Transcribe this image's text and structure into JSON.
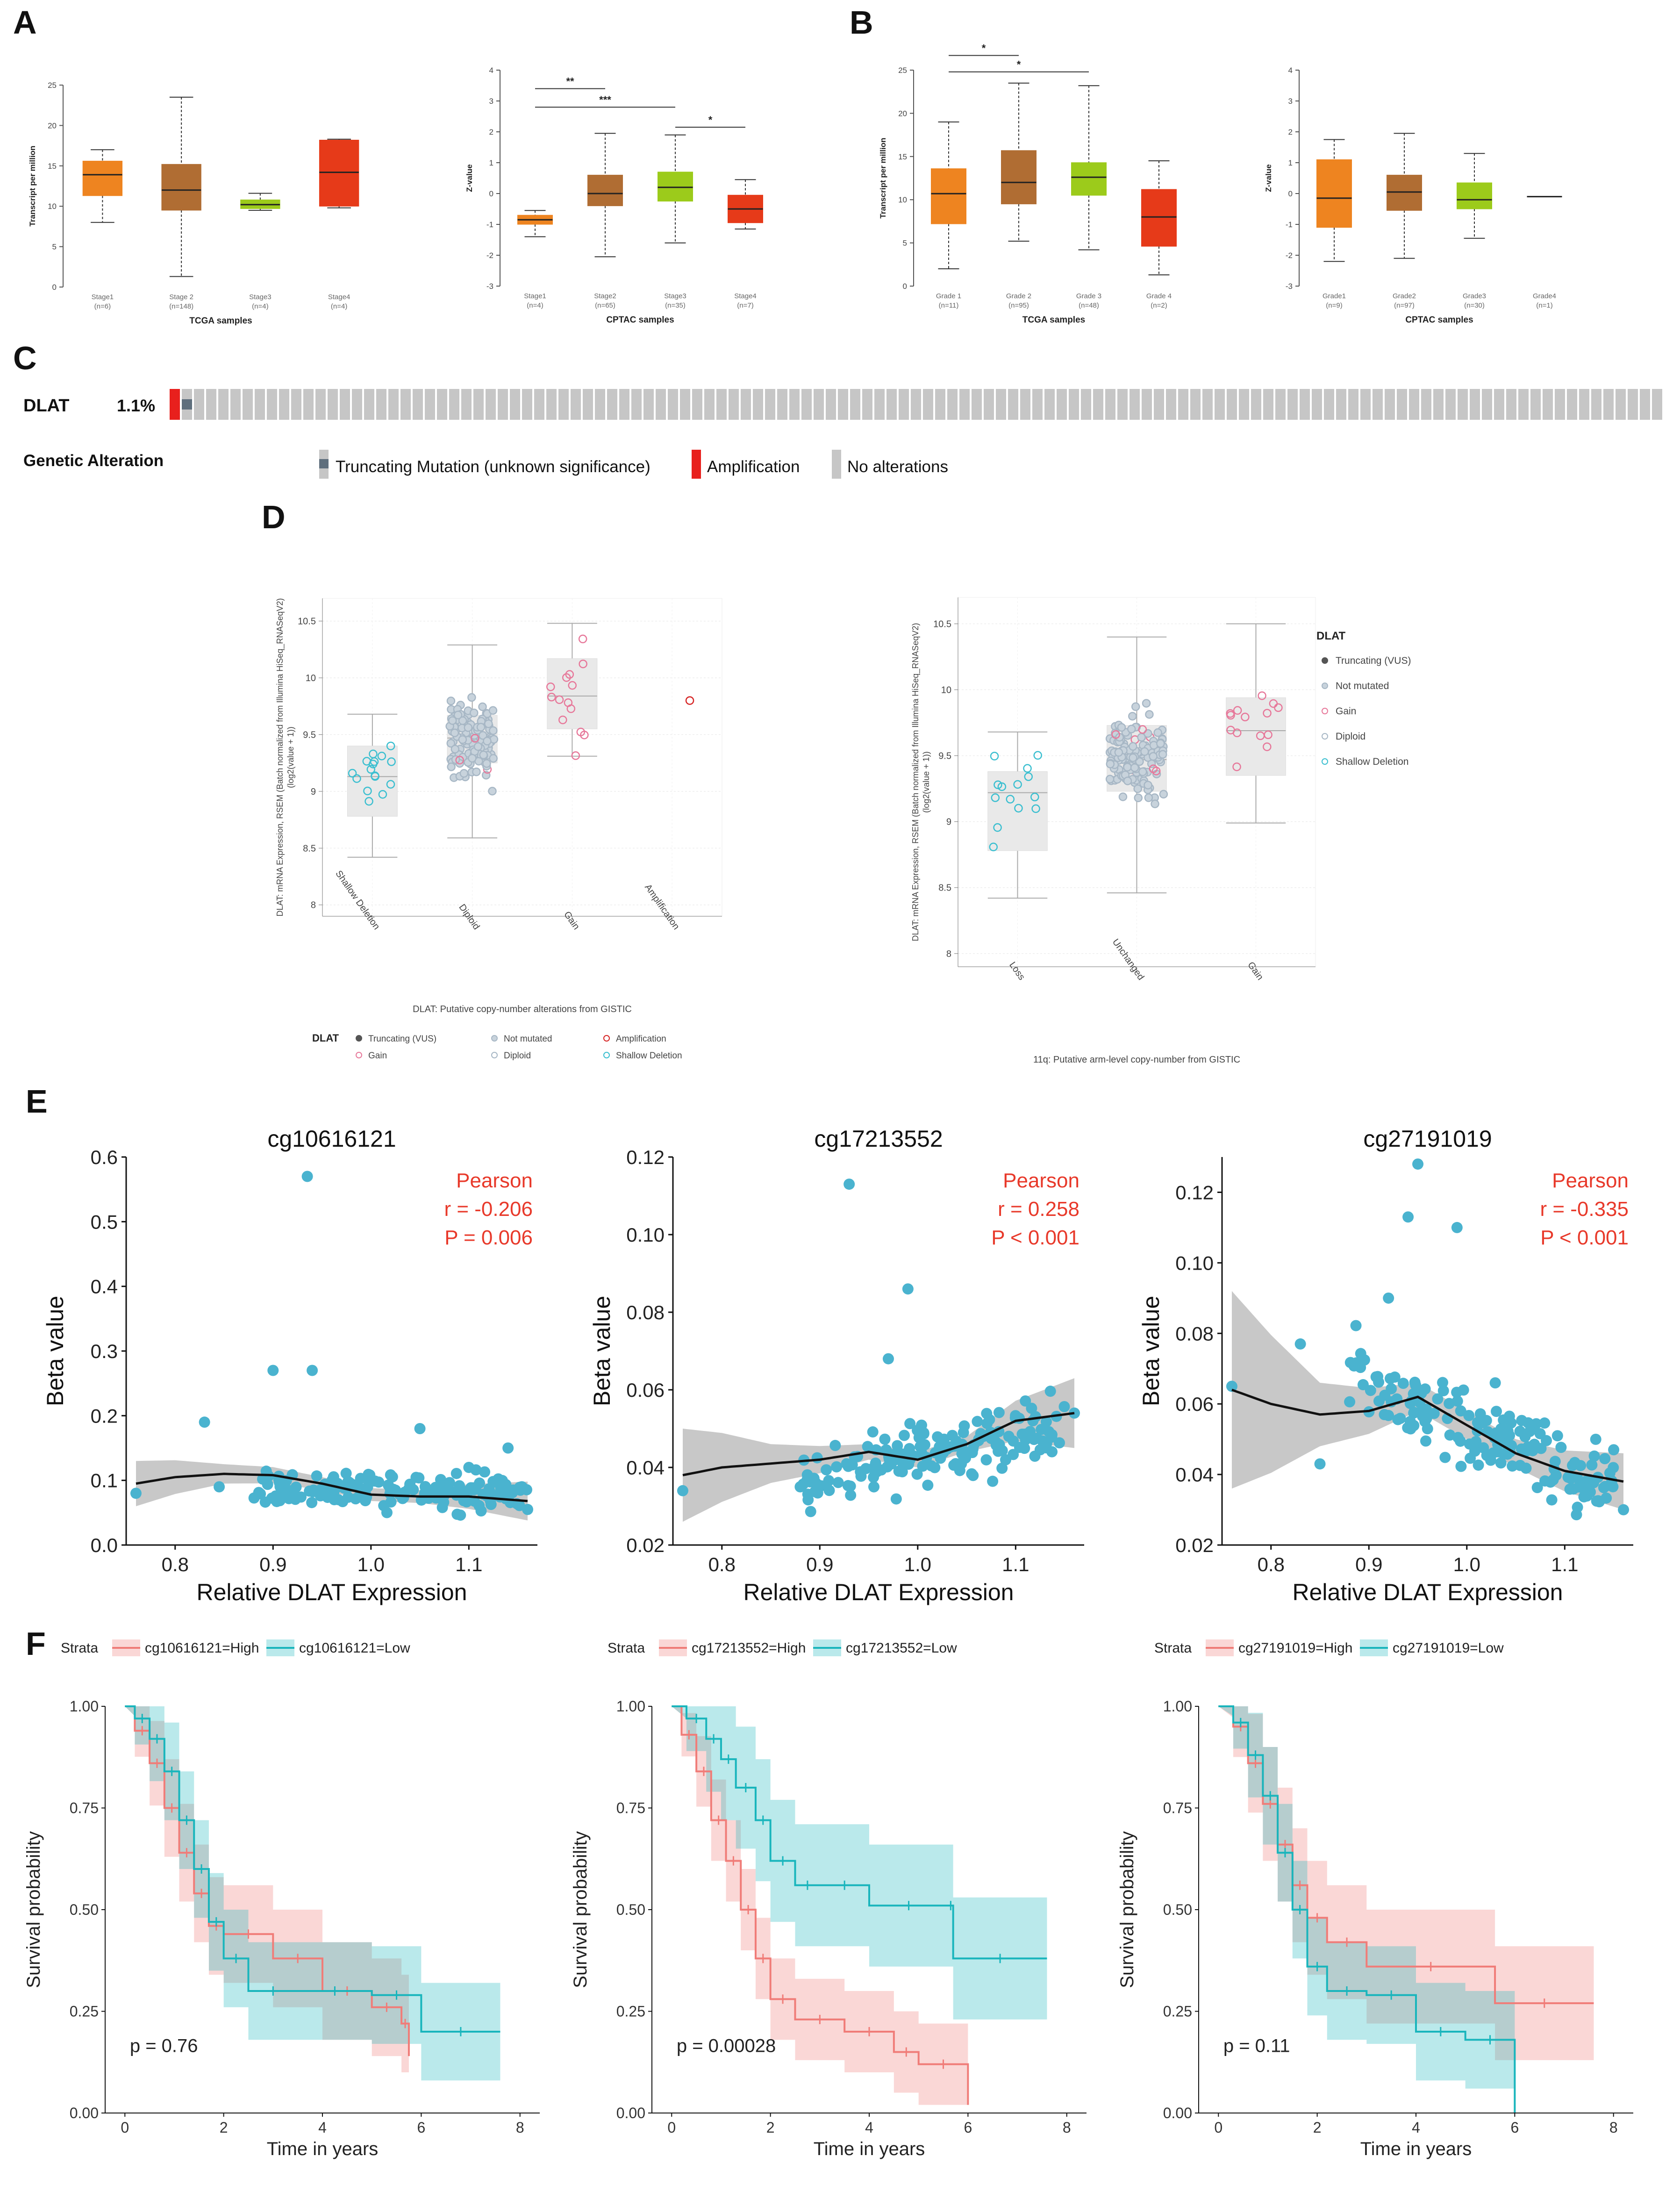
{
  "colors": {
    "orange": "#ee8420",
    "brown": "#b06d33",
    "lime": "#9ccb1b",
    "red": "#e63a19",
    "teal": "#4ab3cf",
    "pearson_red": "#e8392a",
    "km_high": "#f07c78",
    "km_low": "#19b5bc",
    "gray_cell": "#c6c6c6"
  },
  "panel_labels": {
    "a": "A",
    "b": "B",
    "c": "C",
    "d": "D",
    "e": "E",
    "f": "F"
  },
  "panel_a": [
    {
      "title": "",
      "ylabel": "Transcript per million",
      "xlabel": "TCGA samples",
      "ylim": [
        0,
        25
      ],
      "yticks": [
        "0",
        "5",
        "10",
        "15",
        "20",
        "25"
      ],
      "categories": [
        "Stage1",
        "Stage 2",
        "Stage3",
        "Stage4"
      ],
      "counts": [
        "(n=6)",
        "(n=148)",
        "(n=4)",
        "(n=4)"
      ],
      "boxes": [
        {
          "min": 8,
          "q1": 11.3,
          "median": 13.9,
          "q3": 15.6,
          "max": 17,
          "color": "orange"
        },
        {
          "min": 1.3,
          "q1": 9.5,
          "median": 12,
          "q3": 15.2,
          "max": 23.5,
          "color": "brown"
        },
        {
          "min": 9.5,
          "q1": 9.7,
          "median": 10.2,
          "q3": 10.8,
          "max": 11.6,
          "color": "lime"
        },
        {
          "min": 9.8,
          "q1": 10,
          "median": 14.2,
          "q3": 18.2,
          "max": 18.3,
          "color": "red"
        }
      ],
      "brackets": []
    },
    {
      "title": "",
      "ylabel": "Z-value",
      "xlabel": "CPTAC samples",
      "ylim": [
        -3,
        4
      ],
      "yticks": [
        "-3",
        "-2",
        "-1",
        "0",
        "1",
        "2",
        "3",
        "4"
      ],
      "categories": [
        "Stage1",
        "Stage2",
        "Stage3",
        "Stage4"
      ],
      "counts": [
        "(n=4)",
        "(n=65)",
        "(n=35)",
        "(n=7)"
      ],
      "boxes": [
        {
          "min": -1.4,
          "q1": -1,
          "median": -0.85,
          "q3": -0.7,
          "max": -0.55,
          "color": "orange"
        },
        {
          "min": -2.05,
          "q1": -0.4,
          "median": 0,
          "q3": 0.6,
          "max": 1.95,
          "color": "brown"
        },
        {
          "min": -1.6,
          "q1": -0.25,
          "median": 0.2,
          "q3": 0.7,
          "max": 1.9,
          "color": "lime"
        },
        {
          "min": -1.15,
          "q1": -0.95,
          "median": -0.5,
          "q3": -0.05,
          "max": 0.45,
          "color": "red"
        }
      ],
      "brackets": [
        {
          "from": 0,
          "to": 1,
          "y": 3.4,
          "label": "**"
        },
        {
          "from": 0,
          "to": 2,
          "y": 2.8,
          "label": "***"
        },
        {
          "from": 2,
          "to": 3,
          "y": 2.15,
          "label": "*"
        }
      ]
    }
  ],
  "panel_b": [
    {
      "title": "",
      "ylabel": "Transcript per million",
      "xlabel": "TCGA samples",
      "ylim": [
        0,
        25
      ],
      "yticks": [
        "0",
        "5",
        "10",
        "15",
        "20",
        "25"
      ],
      "categories": [
        "Grade 1",
        "Grade 2",
        "Grade 3",
        "Grade 4"
      ],
      "counts": [
        "(n=11)",
        "(n=95)",
        "(n=48)",
        "(n=2)"
      ],
      "boxes": [
        {
          "min": 2,
          "q1": 7.2,
          "median": 10.7,
          "q3": 13.6,
          "max": 19,
          "color": "orange"
        },
        {
          "min": 5.2,
          "q1": 9.5,
          "median": 12,
          "q3": 15.7,
          "max": 23.5,
          "color": "brown"
        },
        {
          "min": 4.2,
          "q1": 10.5,
          "median": 12.6,
          "q3": 14.3,
          "max": 23.2,
          "color": "lime"
        },
        {
          "min": 1.3,
          "q1": 4.6,
          "median": 8,
          "q3": 11.2,
          "max": 14.5,
          "color": "red"
        }
      ],
      "brackets": [
        {
          "from": 0,
          "to": 1,
          "y": 26.7,
          "label": "*"
        },
        {
          "from": 0,
          "to": 2,
          "y": 24.8,
          "label": "*"
        }
      ]
    },
    {
      "title": "",
      "ylabel": "Z-value",
      "xlabel": "CPTAC samples",
      "ylim": [
        -3,
        4
      ],
      "yticks": [
        "-3",
        "-2",
        "-1",
        "0",
        "1",
        "2",
        "3",
        "4"
      ],
      "categories": [
        "Grade1",
        "Grade2",
        "Grade3",
        "Grade4"
      ],
      "counts": [
        "(n=9)",
        "(n=97)",
        "(n=30)",
        "(n=1)"
      ],
      "boxes": [
        {
          "min": -2.2,
          "q1": -1.1,
          "median": -0.15,
          "q3": 1.1,
          "max": 1.75,
          "color": "orange"
        },
        {
          "min": -2.1,
          "q1": -0.55,
          "median": 0.05,
          "q3": 0.6,
          "max": 1.95,
          "color": "brown"
        },
        {
          "min": -1.45,
          "q1": -0.5,
          "median": -0.2,
          "q3": 0.35,
          "max": 1.3,
          "color": "lime"
        },
        {
          "min": -0.1,
          "q1": -0.1,
          "median": -0.1,
          "q3": -0.1,
          "max": -0.1,
          "color": "red"
        }
      ],
      "brackets": []
    }
  ],
  "panel_c": {
    "gene": "DLAT",
    "pct": "1.1%",
    "legend_title": "Genetic Alteration",
    "legend": [
      "Truncating Mutation (unknown significance)",
      "Amplification",
      "No alterations"
    ]
  },
  "panel_d": {
    "left": {
      "ylabel": [
        "DLAT: mRNA Expression, RSEM (Batch normalized from Illumina HiSeq_RNASeqV2)",
        "(log2(value + 1))"
      ],
      "xlabel": "DLAT: Putative copy-number alterations from GISTIC",
      "categories": [
        "Shallow Deletion",
        "Diploid",
        "Gain",
        "Amplification"
      ],
      "ylim": [
        7.9,
        10.7
      ],
      "yticks": [
        8,
        8.5,
        9,
        9.5,
        10,
        10.5
      ],
      "ytick_labels": [
        "8",
        "8.5",
        "9",
        "9.5",
        "10",
        "10.5"
      ],
      "boxes": [
        {
          "min": 8.42,
          "q1": 8.78,
          "median": 9.13,
          "q3": 9.4,
          "max": 9.68
        },
        {
          "min": 8.59,
          "q1": 9.25,
          "median": 9.47,
          "q3": 9.67,
          "max": 10.29
        },
        {
          "min": 9.31,
          "q1": 9.55,
          "median": 9.84,
          "q3": 10.17,
          "max": 10.48
        },
        null
      ],
      "legend_title": "DLAT",
      "legend": [
        "Truncating (VUS)",
        "Not mutated",
        "Amplification",
        "Gain",
        "Diploid",
        "Shallow Deletion"
      ]
    },
    "right": {
      "ylabel": [
        "DLAT: mRNA Expression, RSEM (Batch normalized from Illumina HiSeq_RNASeqV2)",
        "(log2(value + 1))"
      ],
      "xlabel": "11q: Putative arm-level copy-number from GISTIC",
      "categories": [
        "Loss",
        "Unchanged",
        "Gain"
      ],
      "ylim": [
        7.9,
        10.7
      ],
      "yticks": [
        8,
        8.5,
        9,
        9.5,
        10,
        10.5
      ],
      "ytick_labels": [
        "8",
        "8.5",
        "9",
        "9.5",
        "10",
        "10.5"
      ],
      "boxes": [
        {
          "min": 8.42,
          "q1": 8.78,
          "median": 9.22,
          "q3": 9.38,
          "max": 9.68
        },
        {
          "min": 8.46,
          "q1": 9.23,
          "median": 9.47,
          "q3": 9.73,
          "max": 10.4
        },
        {
          "min": 8.99,
          "q1": 9.35,
          "median": 9.69,
          "q3": 9.94,
          "max": 10.5
        }
      ],
      "legend_title": "DLAT",
      "legend": [
        "Truncating (VUS)",
        "Not mutated",
        "Gain",
        "Diploid",
        "Shallow Deletion"
      ]
    }
  },
  "panel_e": [
    {
      "title": "cg10616121",
      "xlabel": "Relative DLAT Expression",
      "ylabel": "Beta value",
      "xlim": [
        0.75,
        1.17
      ],
      "ylim": [
        0,
        0.6
      ],
      "xticks": [
        0.8,
        0.9,
        1.0,
        1.1
      ],
      "xtick_labels": [
        "0.8",
        "0.9",
        "1.0",
        "1.1"
      ],
      "yticks": [
        0,
        0.1,
        0.2,
        0.3,
        0.4,
        0.5,
        0.6
      ],
      "ytick_labels": [
        "0.0",
        "0.1",
        "0.2",
        "0.3",
        "0.4",
        "0.5",
        "0.6"
      ],
      "stat_label": "Pearson",
      "r_text": "r = -0.206",
      "p_text": "P = 0.006",
      "outliers": [
        [
          0.76,
          0.08
        ],
        [
          0.83,
          0.19
        ],
        [
          0.845,
          0.09
        ],
        [
          0.9,
          0.27
        ],
        [
          0.935,
          0.57
        ],
        [
          0.94,
          0.27
        ],
        [
          1.05,
          0.18
        ],
        [
          1.1,
          0.12
        ],
        [
          1.14,
          0.15
        ],
        [
          1.16,
          0.055
        ]
      ],
      "cloud": {
        "x0": 0.88,
        "x1": 1.16,
        "y_center": 0.085,
        "y_spread": 0.028,
        "n": 170,
        "trend": -0.03
      },
      "smooth": [
        [
          0.76,
          0.095
        ],
        [
          0.8,
          0.105
        ],
        [
          0.85,
          0.11
        ],
        [
          0.9,
          0.108
        ],
        [
          0.95,
          0.095
        ],
        [
          1.0,
          0.078
        ],
        [
          1.05,
          0.075
        ],
        [
          1.1,
          0.075
        ],
        [
          1.16,
          0.068
        ]
      ],
      "band_width": [
        [
          0.76,
          0.035
        ],
        [
          0.85,
          0.015
        ],
        [
          0.95,
          0.01
        ],
        [
          1.05,
          0.01
        ],
        [
          1.16,
          0.03
        ]
      ]
    },
    {
      "title": "cg17213552",
      "xlabel": "Relative DLAT Expression",
      "ylabel": "Beta value",
      "xlim": [
        0.75,
        1.17
      ],
      "ylim": [
        0.02,
        0.12
      ],
      "xticks": [
        0.8,
        0.9,
        1.0,
        1.1
      ],
      "xtick_labels": [
        "0.8",
        "0.9",
        "1.0",
        "1.1"
      ],
      "yticks": [
        0.02,
        0.04,
        0.06,
        0.08,
        0.1,
        0.12
      ],
      "ytick_labels": [
        "0.02",
        "0.04",
        "0.06",
        "0.08",
        "0.10",
        "0.12"
      ],
      "stat_label": "Pearson",
      "r_text": "r = 0.258",
      "p_text": "P < 0.001",
      "outliers": [
        [
          0.76,
          0.034
        ],
        [
          0.93,
          0.113
        ],
        [
          0.99,
          0.086
        ],
        [
          1.16,
          0.054
        ],
        [
          0.97,
          0.068
        ],
        [
          0.88,
          0.035
        ]
      ],
      "cloud": {
        "x0": 0.88,
        "x1": 1.15,
        "y_center": 0.043,
        "y_spread": 0.0075,
        "n": 170,
        "trend": 0.05
      },
      "smooth": [
        [
          0.76,
          0.038
        ],
        [
          0.8,
          0.04
        ],
        [
          0.85,
          0.041
        ],
        [
          0.9,
          0.042
        ],
        [
          0.95,
          0.044
        ],
        [
          1.0,
          0.042
        ],
        [
          1.05,
          0.046
        ],
        [
          1.1,
          0.052
        ],
        [
          1.16,
          0.054
        ]
      ],
      "band_width": [
        [
          0.76,
          0.012
        ],
        [
          0.85,
          0.005
        ],
        [
          0.95,
          0.002
        ],
        [
          1.05,
          0.002
        ],
        [
          1.16,
          0.009
        ]
      ]
    },
    {
      "title": "cg27191019",
      "xlabel": "Relative DLAT Expression",
      "ylabel": "Beta value",
      "xlim": [
        0.75,
        1.17
      ],
      "ylim": [
        0.02,
        0.13
      ],
      "xticks": [
        0.8,
        0.9,
        1.0,
        1.1
      ],
      "xtick_labels": [
        "0.8",
        "0.9",
        "1.0",
        "1.1"
      ],
      "yticks": [
        0.02,
        0.04,
        0.06,
        0.08,
        0.1,
        0.12
      ],
      "ytick_labels": [
        "0.02",
        "0.04",
        "0.06",
        "0.08",
        "0.10",
        "0.12"
      ],
      "stat_label": "Pearson",
      "r_text": "r = -0.335",
      "p_text": "P < 0.001",
      "outliers": [
        [
          0.76,
          0.065
        ],
        [
          0.83,
          0.077
        ],
        [
          0.85,
          0.043
        ],
        [
          0.95,
          0.128
        ],
        [
          0.94,
          0.113
        ],
        [
          0.99,
          0.11
        ],
        [
          0.92,
          0.09
        ],
        [
          1.16,
          0.03
        ],
        [
          1.15,
          0.047
        ]
      ],
      "cloud": {
        "x0": 0.88,
        "x1": 1.15,
        "y_center": 0.054,
        "y_spread": 0.011,
        "n": 170,
        "trend": -0.12
      },
      "smooth": [
        [
          0.76,
          0.064
        ],
        [
          0.8,
          0.06
        ],
        [
          0.85,
          0.057
        ],
        [
          0.9,
          0.058
        ],
        [
          0.95,
          0.062
        ],
        [
          1.0,
          0.054
        ],
        [
          1.05,
          0.046
        ],
        [
          1.1,
          0.041
        ],
        [
          1.16,
          0.038
        ]
      ],
      "band_width": [
        [
          0.76,
          0.028
        ],
        [
          0.85,
          0.009
        ],
        [
          0.95,
          0.004
        ],
        [
          1.05,
          0.004
        ],
        [
          1.16,
          0.008
        ]
      ]
    }
  ],
  "panel_f": [
    {
      "strata_label": "Strata",
      "high_label": "cg10616121=High",
      "low_label": "cg10616121=Low",
      "ylabel": "Survival probability",
      "xlabel": "Time in years",
      "xlim": [
        -0.4,
        8.4
      ],
      "ylim": [
        0,
        1
      ],
      "xticks": [
        0,
        2,
        4,
        6,
        8
      ],
      "xtick_labels": [
        "0",
        "2",
        "4",
        "6",
        "8"
      ],
      "yticks": [
        0,
        0.25,
        0.5,
        0.75,
        1
      ],
      "ytick_labels": [
        "0.00",
        "0.25",
        "0.50",
        "0.75",
        "1.00"
      ],
      "p_text": "p = 0.76",
      "high": {
        "t": [
          0,
          0.2,
          0.5,
          0.8,
          1.1,
          1.4,
          1.7,
          2.0,
          3.0,
          4.0,
          5.0,
          5.6,
          5.75
        ],
        "s": [
          1,
          0.94,
          0.86,
          0.75,
          0.64,
          0.54,
          0.46,
          0.44,
          0.38,
          0.3,
          0.26,
          0.22,
          0.14
        ],
        "band": 0.12
      },
      "low": {
        "t": [
          0,
          0.2,
          0.5,
          0.8,
          1.1,
          1.4,
          1.7,
          2.0,
          2.5,
          3.5,
          5.0,
          6.0,
          7.6
        ],
        "s": [
          1,
          0.97,
          0.92,
          0.84,
          0.72,
          0.6,
          0.47,
          0.38,
          0.3,
          0.3,
          0.29,
          0.2,
          0.2
        ],
        "band": 0.12
      }
    },
    {
      "strata_label": "Strata",
      "high_label": "cg17213552=High",
      "low_label": "cg17213552=Low",
      "ylabel": "Survival probability",
      "xlabel": "Time in years",
      "xlim": [
        -0.4,
        8.4
      ],
      "ylim": [
        0,
        1
      ],
      "xticks": [
        0,
        2,
        4,
        6,
        8
      ],
      "xtick_labels": [
        "0",
        "2",
        "4",
        "6",
        "8"
      ],
      "yticks": [
        0,
        0.25,
        0.5,
        0.75,
        1
      ],
      "ytick_labels": [
        "0.00",
        "0.25",
        "0.50",
        "0.75",
        "1.00"
      ],
      "p_text": "p = 0.00028",
      "high": {
        "t": [
          0,
          0.2,
          0.5,
          0.8,
          1.1,
          1.4,
          1.7,
          2.0,
          2.5,
          3.5,
          4.5,
          5.0,
          6.0
        ],
        "s": [
          1,
          0.93,
          0.84,
          0.72,
          0.62,
          0.5,
          0.38,
          0.28,
          0.23,
          0.2,
          0.15,
          0.12,
          0.02
        ],
        "band": 0.1
      },
      "low": {
        "t": [
          0,
          0.3,
          0.7,
          1.0,
          1.3,
          1.7,
          2.0,
          2.5,
          3.0,
          4.0,
          5.6,
          5.7,
          7.6
        ],
        "s": [
          1,
          0.97,
          0.92,
          0.87,
          0.8,
          0.72,
          0.62,
          0.56,
          0.56,
          0.51,
          0.51,
          0.38,
          0.38
        ],
        "band": 0.15
      }
    },
    {
      "strata_label": "Strata",
      "high_label": "cg27191019=High",
      "low_label": "cg27191019=Low",
      "ylabel": "Survival probability",
      "xlabel": "Time in years",
      "xlim": [
        -0.4,
        8.4
      ],
      "ylim": [
        0,
        1
      ],
      "xticks": [
        0,
        2,
        4,
        6,
        8
      ],
      "xtick_labels": [
        "0",
        "2",
        "4",
        "6",
        "8"
      ],
      "yticks": [
        0,
        0.25,
        0.5,
        0.75,
        1
      ],
      "ytick_labels": [
        "0.00",
        "0.25",
        "0.50",
        "0.75",
        "1.00"
      ],
      "p_text": "p = 0.11",
      "high": {
        "t": [
          0,
          0.3,
          0.6,
          0.9,
          1.2,
          1.5,
          1.8,
          2.2,
          3.0,
          5.6,
          7.6
        ],
        "s": [
          1,
          0.95,
          0.86,
          0.76,
          0.66,
          0.56,
          0.48,
          0.42,
          0.36,
          0.27,
          0.27
        ],
        "band": 0.14
      },
      "low": {
        "t": [
          0,
          0.3,
          0.6,
          0.9,
          1.2,
          1.5,
          1.8,
          2.2,
          3.0,
          4.0,
          5.0,
          6.0
        ],
        "s": [
          1,
          0.96,
          0.88,
          0.78,
          0.64,
          0.5,
          0.36,
          0.3,
          0.29,
          0.2,
          0.18,
          0.0
        ],
        "band": 0.12
      }
    }
  ]
}
